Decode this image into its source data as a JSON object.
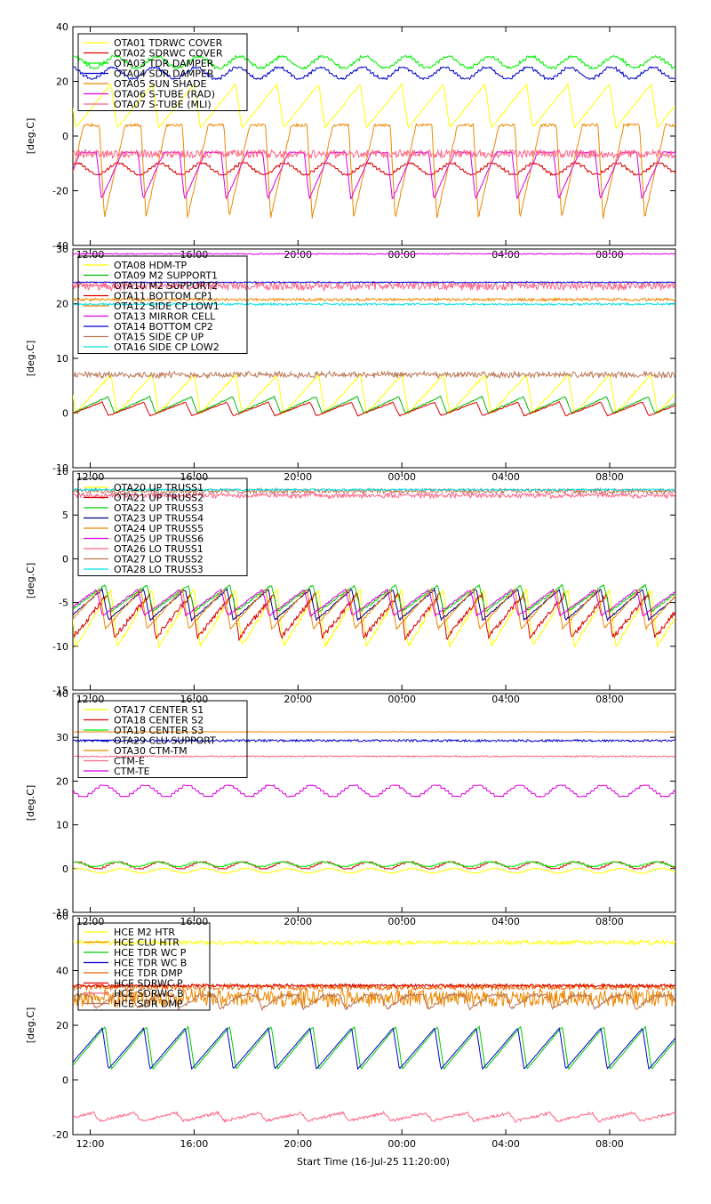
{
  "x_ticks": [
    "12:00",
    "16:00",
    "20:00",
    "00:00",
    "04:00",
    "08:00"
  ],
  "x_title": "Start Time (16-Jul-25 11:20:00)",
  "ylabel": "[deg.C]",
  "chart_data": [
    {
      "type": "line",
      "ylim": [
        -40,
        40
      ],
      "yticks": [
        "40",
        "20",
        "0",
        "-20",
        "-40"
      ],
      "ytick_values": [
        40,
        20,
        0,
        -20,
        -40
      ],
      "ylabel": "[deg.C]",
      "period_hours": 1.6,
      "series": [
        {
          "name": "OTA01 TDRWC COVER",
          "color": "#ffff00",
          "shape": "wave",
          "min": 3,
          "max": 19,
          "noise": 0.3
        },
        {
          "name": "OTA02 SDRWC COVER",
          "color": "#dd0000",
          "shape": "step",
          "min": -14,
          "max": -10,
          "noise": 0.3
        },
        {
          "name": "OTA03 TDR DAMPER",
          "color": "#00ee00",
          "shape": "step",
          "min": 25,
          "max": 29,
          "noise": 0.4
        },
        {
          "name": "OTA04 SDR DAMPER",
          "color": "#0000cc",
          "shape": "step",
          "min": 21,
          "max": 25,
          "noise": 0.3
        },
        {
          "name": "OTA05 SUN SHADE",
          "color": "#ee8800",
          "shape": "spike",
          "min": -30,
          "max": 4,
          "noise": 0.5
        },
        {
          "name": "OTA06 S-TUBE (RAD)",
          "color": "#dd00dd",
          "shape": "spike",
          "min": -23,
          "max": -6,
          "noise": 0.3
        },
        {
          "name": "OTA07 S-TUBE (MLI)",
          "color": "#ff6688",
          "shape": "flat",
          "min": -8,
          "max": -5,
          "noise": 0.2
        }
      ]
    },
    {
      "type": "line",
      "ylim": [
        -10,
        30
      ],
      "yticks": [
        "30",
        "20",
        "10",
        "0",
        "-10"
      ],
      "ytick_values": [
        30,
        20,
        10,
        0,
        -10
      ],
      "ylabel": "[deg.C]",
      "period_hours": 1.6,
      "series": [
        {
          "name": "OTA08 HDM-TP",
          "color": "#ffff00",
          "shape": "wave",
          "min": 0,
          "max": 7,
          "noise": 0.2
        },
        {
          "name": "OTA09 M2 SUPPORT1",
          "color": "#00bb00",
          "shape": "wave",
          "min": 0,
          "max": 3,
          "noise": 0.1
        },
        {
          "name": "OTA10 M2 SUPPORT2",
          "color": "#ff6688",
          "shape": "flat",
          "min": 22.5,
          "max": 24,
          "noise": 0.3
        },
        {
          "name": "OTA11 BOTTOM CP1",
          "color": "#dd0000",
          "shape": "wave",
          "min": -0.5,
          "max": 2,
          "noise": 0.1
        },
        {
          "name": "OTA12 SIDE CP LOW1",
          "color": "#ee8800",
          "shape": "flat",
          "min": 20.5,
          "max": 21,
          "noise": 0.05
        },
        {
          "name": "OTA13 MIRROR CELL",
          "color": "#dd00dd",
          "shape": "flat",
          "min": 29,
          "max": 29.2,
          "noise": 0.05
        },
        {
          "name": "OTA14 BOTTOM CP2",
          "color": "#0000cc",
          "shape": "flat",
          "min": 23.8,
          "max": 24,
          "noise": 0.05
        },
        {
          "name": "OTA15 SIDE CP UP",
          "color": "#bb7755",
          "shape": "flat",
          "min": 6.5,
          "max": 7.5,
          "noise": 0.3
        },
        {
          "name": "OTA16 SIDE CP LOW2",
          "color": "#00dddd",
          "shape": "flat",
          "min": 19.8,
          "max": 20,
          "noise": 0.3
        }
      ]
    },
    {
      "type": "line",
      "ylim": [
        -15,
        10
      ],
      "yticks": [
        "10",
        "5",
        "0",
        "-5",
        "-10",
        "-15"
      ],
      "ytick_values": [
        10,
        5,
        0,
        -5,
        -10,
        -15
      ],
      "ylabel": "[deg.C]",
      "period_hours": 1.6,
      "series": [
        {
          "name": "OTA20 UP TRUSS1",
          "color": "#ffff00",
          "shape": "wave",
          "min": -10,
          "max": -3.5,
          "noise": 0.2
        },
        {
          "name": "OTA21 UP TRUSS2",
          "color": "#dd0000",
          "shape": "wave",
          "min": -9,
          "max": -4,
          "noise": 0.3
        },
        {
          "name": "OTA22 UP TRUSS3",
          "color": "#00cc00",
          "shape": "wave",
          "min": -6,
          "max": -3,
          "noise": 0.1
        },
        {
          "name": "OTA23 UP TRUSS4",
          "color": "#000088",
          "shape": "wave",
          "min": -7,
          "max": -3.5,
          "noise": 0.1
        },
        {
          "name": "OTA24 UP TRUSS5",
          "color": "#ee8800",
          "shape": "wave",
          "min": -8,
          "max": -3.5,
          "noise": 0.1
        },
        {
          "name": "OTA25 UP TRUSS6",
          "color": "#dd00dd",
          "shape": "wave",
          "min": -6.5,
          "max": -3.5,
          "noise": 0.1
        },
        {
          "name": "OTA26 LO TRUSS1",
          "color": "#ff6688",
          "shape": "flat",
          "min": 7,
          "max": 7.5,
          "noise": 0.3
        },
        {
          "name": "OTA27 LO TRUSS2",
          "color": "#bb7755",
          "shape": "flat",
          "min": 7.5,
          "max": 8,
          "noise": 0.1
        },
        {
          "name": "OTA28 LO TRUSS3",
          "color": "#00dddd",
          "shape": "flat",
          "min": 7.8,
          "max": 8,
          "noise": 0.05
        }
      ]
    },
    {
      "type": "line",
      "ylim": [
        -10,
        40
      ],
      "yticks": [
        "40",
        "30",
        "20",
        "10",
        "0",
        "-10"
      ],
      "ytick_values": [
        40,
        30,
        20,
        10,
        0,
        -10
      ],
      "ylabel": "[deg.C]",
      "period_hours": 1.6,
      "series": [
        {
          "name": "OTA17 CENTER S1",
          "color": "#ffff00",
          "shape": "step",
          "min": -1,
          "max": 0,
          "noise": 0.1
        },
        {
          "name": "OTA18 CENTER S2",
          "color": "#dd0000",
          "shape": "step",
          "min": 0,
          "max": 1.5,
          "noise": 0.1
        },
        {
          "name": "OTA19 CENTER S3",
          "color": "#00ee00",
          "shape": "step",
          "min": 0.5,
          "max": 1.5,
          "noise": 0.1
        },
        {
          "name": "OTA29 CLU SUPPORT",
          "color": "#0000cc",
          "shape": "flat",
          "min": 29,
          "max": 29.5,
          "noise": 0.05
        },
        {
          "name": "OTA30 CTM-TM",
          "color": "#ee8800",
          "shape": "flat",
          "min": 31.2,
          "max": 31.3,
          "noise": 0.02
        },
        {
          "name": "CTM-E",
          "color": "#ff6688",
          "shape": "flat",
          "min": 25.5,
          "max": 25.8,
          "noise": 0.1
        },
        {
          "name": "CTM-TE",
          "color": "#dd00dd",
          "shape": "step",
          "min": 16.5,
          "max": 19,
          "noise": 0.1
        }
      ]
    },
    {
      "type": "line",
      "ylim": [
        -20,
        60
      ],
      "yticks": [
        "60",
        "40",
        "20",
        "0",
        "-20"
      ],
      "ytick_values": [
        60,
        40,
        20,
        0,
        -20
      ],
      "ylabel": "[deg.C]",
      "period_hours": 1.6,
      "series": [
        {
          "name": "HCE M2 HTR",
          "color": "#ffff00",
          "shape": "flat",
          "min": 49.5,
          "max": 51,
          "noise": 0.4
        },
        {
          "name": "HCE CLU HTR",
          "color": "#ee8800",
          "shape": "flat",
          "min": 27,
          "max": 33,
          "noise": 1.2
        },
        {
          "name": "HCE TDR WC P",
          "color": "#00cc00",
          "shape": "wave",
          "min": 4,
          "max": 19.5,
          "noise": 0.1
        },
        {
          "name": "HCE TDR WC B",
          "color": "#0000cc",
          "shape": "wave",
          "min": 4,
          "max": 19,
          "noise": 0.1
        },
        {
          "name": "HCE TDR DMP",
          "color": "#ee6600",
          "shape": "flat",
          "min": 33,
          "max": 35,
          "noise": 0.5
        },
        {
          "name": "HCE SDRWC P",
          "color": "#dd0000",
          "shape": "flat",
          "min": 34,
          "max": 35,
          "noise": 0.3
        },
        {
          "name": "HCE SDRWC B",
          "color": "#ff6688",
          "shape": "wave",
          "min": -15,
          "max": -12,
          "noise": 0.5
        },
        {
          "name": "HCE SDR DMP",
          "color": "#bb7755",
          "shape": "spike",
          "min": 26,
          "max": 31,
          "noise": 0.6
        }
      ]
    }
  ]
}
